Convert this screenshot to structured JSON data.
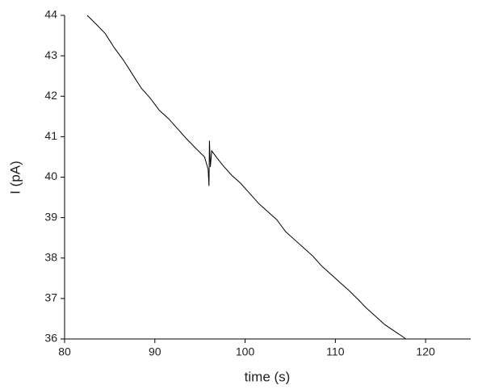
{
  "chart_data": {
    "type": "line",
    "x_label": "time (s)",
    "y_label": "I (pA)",
    "xlim": [
      80,
      125
    ],
    "ylim": [
      36,
      44
    ],
    "xticks": [
      80,
      90,
      100,
      110,
      120
    ],
    "yticks": [
      36,
      37,
      38,
      39,
      40,
      41,
      42,
      43,
      44
    ],
    "series": [
      {
        "color": "#000000",
        "x": [
          82.5,
          83.5,
          84.5,
          85.5,
          86.5,
          87.5,
          88.5,
          89.5,
          90.5,
          91.5,
          92.5,
          93.5,
          94.5,
          95.5,
          95.9,
          96.0,
          96.05,
          96.15,
          96.3,
          96.8,
          97.5,
          98.5,
          99.5,
          100.5,
          101.5,
          102.5,
          103.5,
          104.5,
          105.5,
          106.5,
          107.5,
          108.5,
          109.5,
          110.5,
          111.5,
          112.5,
          113.5,
          114.5,
          115.5,
          116.5,
          117.5,
          117.8
        ],
        "values": [
          44.0,
          43.78,
          43.55,
          43.2,
          42.9,
          42.55,
          42.2,
          41.95,
          41.65,
          41.45,
          41.2,
          40.95,
          40.72,
          40.5,
          40.2,
          39.78,
          40.9,
          40.25,
          40.65,
          40.5,
          40.3,
          40.05,
          39.85,
          39.6,
          39.35,
          39.15,
          38.95,
          38.65,
          38.45,
          38.25,
          38.05,
          37.8,
          37.6,
          37.4,
          37.2,
          36.98,
          36.75,
          36.55,
          36.35,
          36.2,
          36.05,
          36.0
        ]
      }
    ]
  }
}
